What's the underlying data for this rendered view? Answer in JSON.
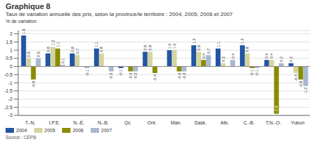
{
  "chart_data": {
    "type": "bar",
    "title": "Graphique 8",
    "subtitle": "Taux de variation annuelle des prix, selon la province/le territoire : 2004, 2005, 2006 et 2007",
    "ylabel": "% de variation",
    "source": "Source : CÉPB",
    "categories": [
      "T.-N.",
      "I.P.E.",
      "N.-É.",
      "N.-B.",
      "Qc",
      "Ont.",
      "Man.",
      "Sask.",
      "Alb.",
      "C.-B.",
      "T.N.-O.",
      "Yukon"
    ],
    "series": [
      {
        "name": "2004",
        "color": "#2255a4",
        "values": [
          1.9,
          0.8,
          0.8,
          1.1,
          -0.1,
          0.9,
          1.0,
          1.3,
          1.1,
          1.3,
          0.4,
          0.2
        ],
        "value_labels": [
          "1.9",
          "0.8",
          "0.8",
          "1.1",
          "-0.1",
          "0.9",
          "1.0",
          "1.3",
          "1.1",
          "1.3",
          "0.4",
          "0.2"
        ]
      },
      {
        "name": "2005",
        "color": "#d4d4a0",
        "values": [
          0.5,
          1.2,
          0.7,
          0.8,
          0.0,
          0.9,
          1.0,
          0.9,
          0.2,
          0.8,
          0.4,
          -0.4
        ],
        "value_labels": [
          "0.5",
          "1.2",
          "0.7",
          "0.8",
          null,
          "0.9",
          "1.0",
          "0.9",
          "0.2",
          "0.8",
          "0.4",
          "-0.4"
        ]
      },
      {
        "name": "2006",
        "color": "#8b8b00",
        "values": [
          -0.8,
          1.1,
          0.0,
          0.0,
          -0.3,
          -0.4,
          -0.3,
          0.4,
          0.0,
          -0.1,
          -2.9,
          -0.8
        ],
        "value_labels": [
          "-0.8",
          "1.1",
          null,
          null,
          "-0.3",
          "-0.4",
          "-0.3",
          "0.4",
          null,
          "-0.1",
          "-2.9",
          "-0.8"
        ]
      },
      {
        "name": "2007",
        "color": "#a8b8d0",
        "values": [
          0.5,
          0.1,
          -0.1,
          -0.3,
          -0.3,
          0.0,
          -0.3,
          0.7,
          0.4,
          -0.1,
          0.2,
          -1.2
        ],
        "value_labels": [
          "0.5",
          "0.1",
          "-0.1",
          "-0.3",
          "-0.3",
          null,
          "-0.3",
          "0.7",
          "0.4",
          "-0.1",
          "0.2",
          "-1.2"
        ]
      }
    ],
    "ylim": [
      -3.0,
      2.2
    ],
    "yticks": [
      -3,
      -2.5,
      -2,
      -1.5,
      -1,
      -0.5,
      0,
      0.5,
      1,
      1.5,
      2
    ],
    "grid": true,
    "data_labels": true,
    "legend": "bottom"
  }
}
